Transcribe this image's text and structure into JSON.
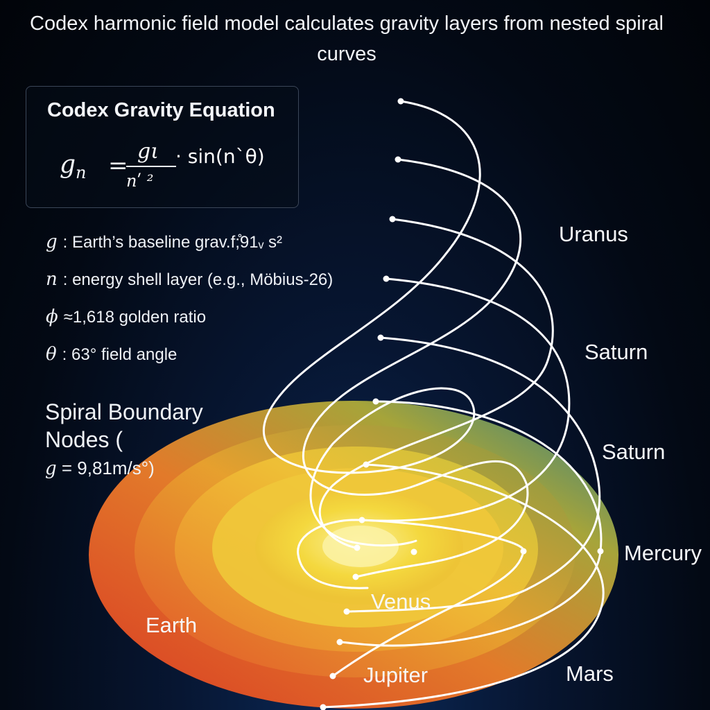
{
  "title": "Codex harmonic field model calculates gravity layers from nested spiral curves",
  "equation_box": {
    "heading": "Codex Gravity Equation",
    "lhs_symbol": "g",
    "lhs_subscript": "n",
    "equals": "=",
    "numerator": "gι",
    "denominator": "nʹ ²",
    "trailing": "· sin(nˋθ)"
  },
  "definitions": [
    {
      "symbol": "g",
      "text": ": Earth’s baseline grav.f;̊91ᵥ s²"
    },
    {
      "symbol": "n",
      "text": ": energy shell layer (e.g., Möbius-26)"
    },
    {
      "symbol": "ϕ",
      "text": "≈1,618 golden ratio"
    },
    {
      "symbol": "θ",
      "text": ": 63° field angle"
    }
  ],
  "spiral_boundary": {
    "line1": "Spiral Boundary",
    "line2": "Nodes (",
    "g_symbol": "g",
    "g_value": " = 9,81m/s°)"
  },
  "planet_labels": {
    "uranus": "Uranus",
    "saturn_1": "Saturn",
    "saturn_2": "Saturn",
    "mercury": "Mercury",
    "venus": "Venus",
    "earth": "Earth",
    "jupiter": "Jupiter",
    "mars": "Mars"
  },
  "colors": {
    "outer_ring": "#d8432a",
    "outer_ring_edge": "#3a8a8c",
    "middle_ring": "#e8a02a",
    "inner_ring": "#f2d43a",
    "core": "#f7e86a",
    "curve": "#ffffff"
  }
}
